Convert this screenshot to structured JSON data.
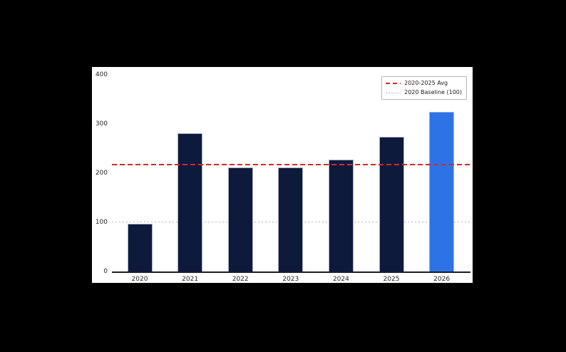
{
  "colors": {
    "page_bg": "#000000",
    "figure_bg": "#ffffff",
    "bar_default": "#0e1a3c",
    "bar_default_edge": "#a9b0c6",
    "bar_highlight": "#2e73e6",
    "bar_highlight_edge": "#8db2f1",
    "avg_line": "#d62728",
    "baseline_line": "#b5b5b5",
    "spine": "#1a1a2e",
    "tick_text": "#262626"
  },
  "chart_data": {
    "type": "bar",
    "title": "",
    "xlabel": "",
    "ylabel": "",
    "categories": [
      "2020",
      "2021",
      "2022",
      "2023",
      "2024",
      "2025",
      "2026"
    ],
    "values": [
      97,
      281,
      212,
      211,
      227,
      274,
      324
    ],
    "highlight_index": 6,
    "ylim": [
      0,
      400
    ],
    "yticks": [
      0,
      100,
      200,
      300,
      400
    ],
    "grid": "off",
    "avg_line": {
      "label": "2020-2025 Avg",
      "value": 217,
      "style": "dashed",
      "color": "#d62728"
    },
    "baseline": {
      "label": "2020 Baseline (100)",
      "value": 100,
      "style": "dotted",
      "color": "#b5b5b5"
    },
    "legend_position": "upper-right"
  }
}
